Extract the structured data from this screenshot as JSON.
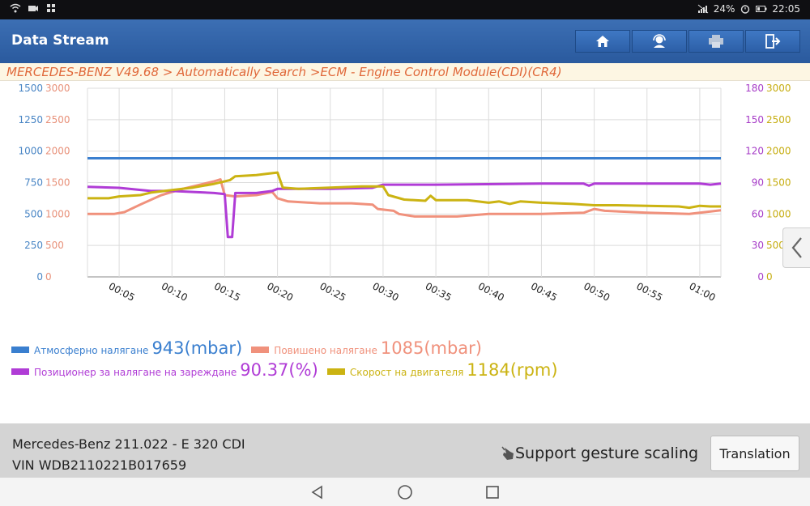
{
  "status_bar": {
    "battery": "24%",
    "time": "22:05",
    "icons": [
      "wifi-icon",
      "camera-icon",
      "grid-icon",
      "signal-off-icon",
      "alarm-icon",
      "battery-icon"
    ]
  },
  "header": {
    "title": "Data Stream",
    "buttons": [
      "home-icon",
      "support-icon",
      "print-icon",
      "exit-icon"
    ]
  },
  "breadcrumb": "MERCEDES-BENZ V49.68 > Automatically Search >ECM - Engine Control Module(CDI)(CR4)",
  "chart_data": {
    "type": "line",
    "x_ticks": [
      "00:05",
      "00:10",
      "00:15",
      "00:20",
      "00:25",
      "00:30",
      "00:35",
      "00:40",
      "00:45",
      "00:50",
      "00:55",
      "01:00"
    ],
    "x_range": [
      2,
      62
    ],
    "grid": true,
    "axes": {
      "left_1": {
        "color": "#4a86c5",
        "ticks": [
          "0",
          "250",
          "500",
          "750",
          "1000",
          "1250",
          "1500"
        ],
        "range": [
          0,
          1500
        ]
      },
      "left_2": {
        "color": "#e8917a",
        "ticks": [
          "0",
          "500",
          "1000",
          "1500",
          "2000",
          "2500",
          "3000"
        ],
        "range": [
          0,
          3000
        ]
      },
      "right_1": {
        "color": "#a63bc7",
        "ticks": [
          "0",
          "30",
          "60",
          "90",
          "120",
          "150",
          "180"
        ],
        "range": [
          0,
          180
        ]
      },
      "right_2": {
        "color": "#c6ad10",
        "ticks": [
          "0",
          "500",
          "1000",
          "1500",
          "2000",
          "2500",
          "3000"
        ],
        "range": [
          0,
          3000
        ]
      }
    },
    "series": [
      {
        "name": "Атмосферно налягане",
        "color": "#3a7fcf",
        "axis": "left_1",
        "points": [
          [
            2,
            943
          ],
          [
            30,
            943
          ],
          [
            62,
            943
          ]
        ]
      },
      {
        "name": "Повишено налягане",
        "color": "#f0917c",
        "axis": "left_2",
        "points": [
          [
            2,
            1000
          ],
          [
            4.5,
            1000
          ],
          [
            5.5,
            1030
          ],
          [
            7,
            1150
          ],
          [
            9,
            1300
          ],
          [
            11,
            1400
          ],
          [
            13,
            1480
          ],
          [
            14,
            1520
          ],
          [
            14.6,
            1550
          ],
          [
            15,
            1300
          ],
          [
            16,
            1280
          ],
          [
            18,
            1300
          ],
          [
            19.5,
            1350
          ],
          [
            20,
            1250
          ],
          [
            21,
            1200
          ],
          [
            24,
            1170
          ],
          [
            27,
            1170
          ],
          [
            29,
            1150
          ],
          [
            29.5,
            1080
          ],
          [
            31,
            1050
          ],
          [
            31.5,
            1000
          ],
          [
            33,
            960
          ],
          [
            37,
            960
          ],
          [
            40,
            1000
          ],
          [
            45,
            1000
          ],
          [
            49,
            1020
          ],
          [
            50,
            1080
          ],
          [
            51,
            1050
          ],
          [
            55,
            1020
          ],
          [
            59,
            1000
          ],
          [
            61,
            1040
          ],
          [
            62,
            1060
          ]
        ]
      },
      {
        "name": "Позиционер за налягане на зареждане",
        "color": "#b03cd6",
        "axis": "right_1",
        "points": [
          [
            2,
            86
          ],
          [
            5,
            85
          ],
          [
            8,
            82
          ],
          [
            10,
            82
          ],
          [
            12,
            81
          ],
          [
            14,
            80
          ],
          [
            15,
            79
          ],
          [
            15.3,
            38
          ],
          [
            15.7,
            38
          ],
          [
            16,
            80
          ],
          [
            18,
            80
          ],
          [
            19.5,
            82
          ],
          [
            20,
            84
          ],
          [
            25,
            84
          ],
          [
            29,
            85
          ],
          [
            30,
            88
          ],
          [
            35,
            88
          ],
          [
            45,
            89
          ],
          [
            49,
            89
          ],
          [
            49.5,
            87
          ],
          [
            50,
            89
          ],
          [
            55,
            89
          ],
          [
            60,
            89
          ],
          [
            61,
            88
          ],
          [
            62,
            89
          ]
        ]
      },
      {
        "name": "Скорост на двигателя",
        "color": "#cbb312",
        "axis": "right_2",
        "points": [
          [
            2,
            1250
          ],
          [
            4,
            1250
          ],
          [
            5,
            1280
          ],
          [
            7,
            1300
          ],
          [
            8,
            1340
          ],
          [
            10,
            1380
          ],
          [
            12,
            1420
          ],
          [
            14,
            1480
          ],
          [
            15.5,
            1540
          ],
          [
            16,
            1600
          ],
          [
            18,
            1620
          ],
          [
            19,
            1640
          ],
          [
            20,
            1660
          ],
          [
            20.5,
            1420
          ],
          [
            22,
            1400
          ],
          [
            25,
            1420
          ],
          [
            28,
            1440
          ],
          [
            30,
            1440
          ],
          [
            30.5,
            1300
          ],
          [
            32,
            1230
          ],
          [
            34,
            1210
          ],
          [
            34.5,
            1290
          ],
          [
            35,
            1220
          ],
          [
            38,
            1220
          ],
          [
            40,
            1180
          ],
          [
            41,
            1200
          ],
          [
            42,
            1160
          ],
          [
            43,
            1200
          ],
          [
            45,
            1180
          ],
          [
            48,
            1160
          ],
          [
            50,
            1140
          ],
          [
            52,
            1140
          ],
          [
            55,
            1130
          ],
          [
            58,
            1120
          ],
          [
            59,
            1100
          ],
          [
            60,
            1130
          ],
          [
            61,
            1120
          ],
          [
            62,
            1120
          ]
        ]
      }
    ]
  },
  "legend": [
    {
      "name": "Атмосферно налягане",
      "value": "943(mbar)",
      "color": "#3a7fcf"
    },
    {
      "name": "Повишено налягане",
      "value": "1085(mbar)",
      "color": "#f0917c"
    },
    {
      "name": "Позиционер за налягане на зареждане",
      "value": "90.37(%)",
      "color": "#b03cd6"
    },
    {
      "name": "Скорост на двигателя",
      "value": "1184(rpm)",
      "color": "#cbb312"
    }
  ],
  "footer": {
    "vehicle": "Mercedes-Benz 211.022 - E 320 CDI",
    "vin": "VIN WDB2110221B017659",
    "gesture_text": "Support gesture scaling",
    "translation_label": "Translation"
  },
  "navbar": [
    "back-icon",
    "home-circle-icon",
    "recents-icon"
  ]
}
